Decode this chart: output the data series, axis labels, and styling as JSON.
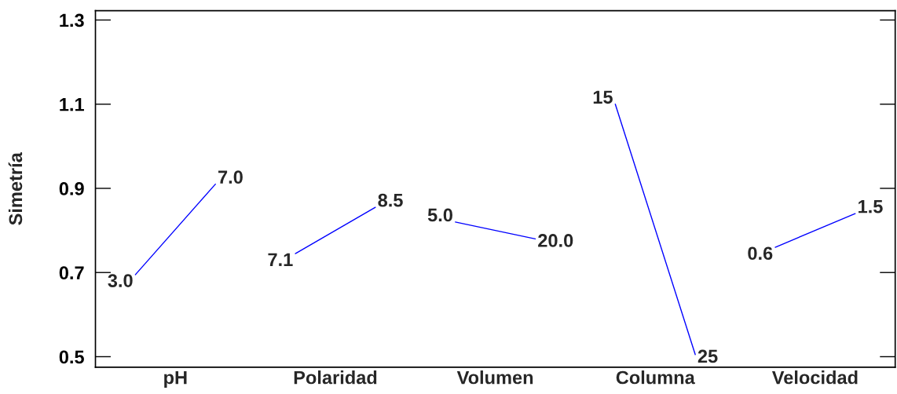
{
  "chart_data": {
    "type": "line",
    "ylabel": "Simetría",
    "categories": [
      null,
      null,
      null,
      null,
      null,
      null,
      null,
      null,
      null,
      null
    ],
    "ylim": [
      0.475,
      1.322
    ],
    "yticks": [
      0.5,
      0.7,
      0.9,
      1.1,
      1.3
    ],
    "series": [
      {
        "color": "#0000ff",
        "values": [
          0.695,
          0.91,
          null,
          null,
          null,
          null,
          null,
          null,
          null,
          null
        ]
      },
      {
        "color": "#0000ff",
        "values": [
          null,
          null,
          0.745,
          0.855,
          null,
          null,
          null,
          null,
          null,
          null
        ]
      },
      {
        "color": "#0000ff",
        "values": [
          null,
          null,
          null,
          null,
          0.82,
          0.78,
          null,
          null,
          null,
          null
        ]
      },
      {
        "color": "#0000ff",
        "values": [
          null,
          null,
          null,
          null,
          null,
          null,
          1.1,
          0.505,
          null,
          null
        ]
      },
      {
        "color": "#0000ff",
        "values": [
          null,
          null,
          null,
          null,
          null,
          null,
          null,
          null,
          0.76,
          0.84
        ]
      }
    ],
    "annotations": [
      "3.0",
      "7.0",
      "7.1",
      "8.5",
      "5.0",
      "20.0",
      "15",
      "25",
      "0.6",
      "1.5",
      "pH",
      "Polaridad",
      "Volumen",
      "Columna",
      "Velocidad"
    ]
  }
}
